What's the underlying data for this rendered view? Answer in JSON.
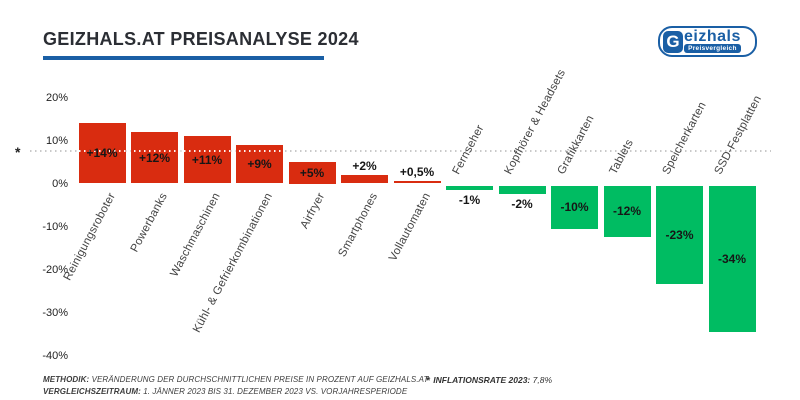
{
  "header": {
    "title": "GEIZHALS.AT PREISANALYSE 2024",
    "logo": {
      "g": "G",
      "name": "eizhals",
      "tagline": "Preisvergleich"
    }
  },
  "colors": {
    "positive": "#d92c10",
    "negative": "#00bc62",
    "brand_blue": "#1a5fa5",
    "title_text": "#2b2e34",
    "reference_line": "#c9c9c9"
  },
  "chart_data": {
    "type": "bar",
    "title": "GEIZHALS.AT PREISANALYSE 2024",
    "xlabel": "",
    "ylabel": "",
    "ylim": [
      -40,
      20
    ],
    "grid": false,
    "legend_position": "none",
    "categories": [
      "Reinigungsroboter",
      "Powerbanks",
      "Waschmaschinen",
      "Kühl- & Gefrierkombinationen",
      "Airfryer",
      "Smartphones",
      "Vollautomaten",
      "Fernseher",
      "Kopfhörer & Headsets",
      "Grafikkarten",
      "Tablets",
      "Speicherkarten",
      "SSD-Festplatten"
    ],
    "values": [
      14,
      12,
      11,
      9,
      5,
      2,
      0.5,
      -1,
      -2,
      -10,
      -12,
      -23,
      -34
    ],
    "value_labels": [
      "+14%",
      "+12%",
      "+11%",
      "+9%",
      "+5%",
      "+2%",
      "+0,5%",
      "-1%",
      "-2%",
      "-10%",
      "-12%",
      "-23%",
      "-34%"
    ],
    "bar_colors": {
      "positive": "#d92c10",
      "negative": "#00bc62"
    },
    "y_ticks": [
      {
        "label": "20%",
        "value": 20
      },
      {
        "label": "10%",
        "value": 10
      },
      {
        "label": "0%",
        "value": 0
      },
      {
        "label": "-10%",
        "value": -10
      },
      {
        "label": "-20%",
        "value": -20
      },
      {
        "label": "-30%",
        "value": -30
      },
      {
        "label": "-40%",
        "value": -40
      }
    ],
    "reference_line": {
      "value": 7.8,
      "marker": "*",
      "style": "dotted",
      "label": "INFLATIONSRATE 2023: 7,8%"
    }
  },
  "footer": {
    "methodik_label": "METHODIK:",
    "methodik_text": "VERÄNDERUNG DER DURCHSCHNITTLICHEN PREISE IN PROZENT AUF GEIZHALS.AT",
    "zeitraum_label": "VERGLEICHSZEITRAUM:",
    "zeitraum_text": "1. JÄNNER 2023 BIS 31. DEZEMBER 2023 VS. VORJAHRESPERIODE",
    "footnote_star": "*",
    "footnote_label": "INFLATIONSRATE 2023:",
    "footnote_value": "7,8%"
  }
}
